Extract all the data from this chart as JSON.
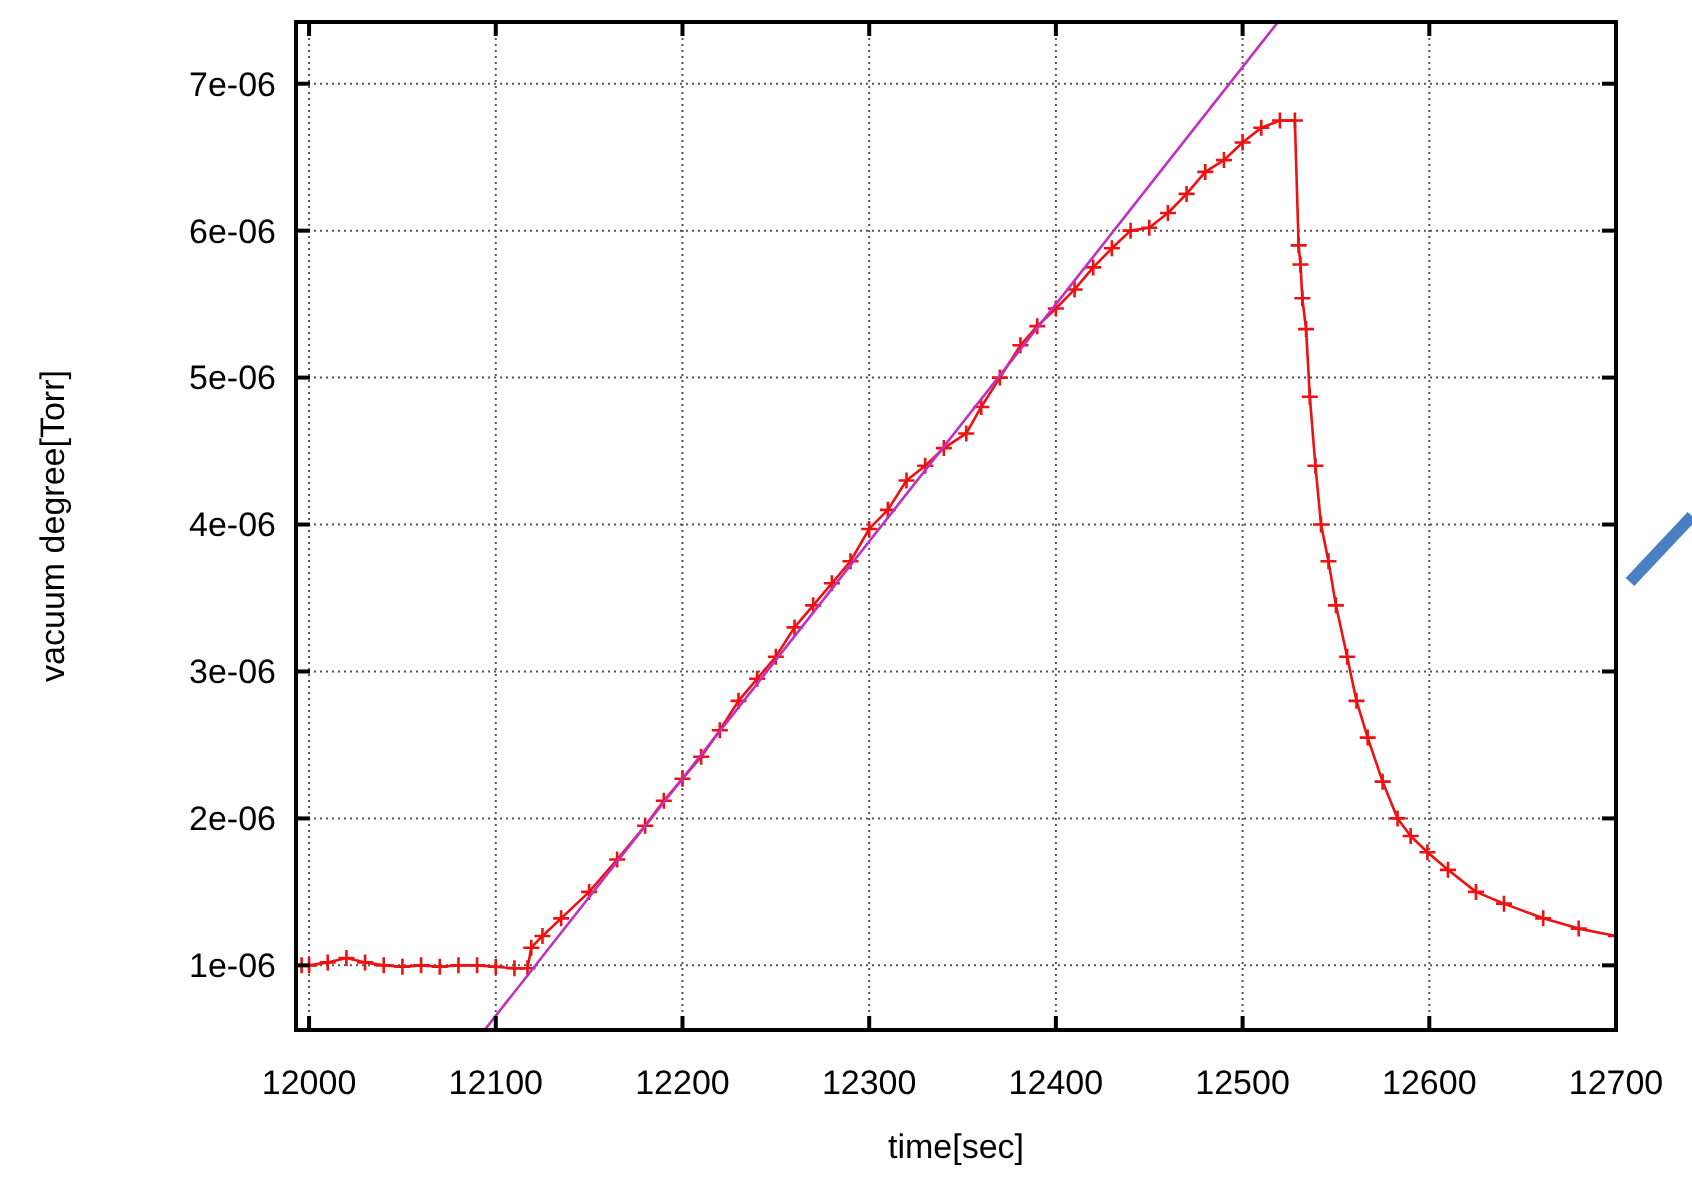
{
  "chart_data": {
    "type": "line",
    "xlabel": "time[sec]",
    "ylabel": "vacuum degree[Torr]",
    "xlim": [
      11993,
      12700
    ],
    "xticks": [
      12000,
      12100,
      12200,
      12300,
      12400,
      12500,
      12600,
      12700
    ],
    "ylim": [
      5.6e-07,
      7.42e-06
    ],
    "yticks": [
      {
        "value": 1e-06,
        "label": "1e-06"
      },
      {
        "value": 2e-06,
        "label": "2e-06"
      },
      {
        "value": 3e-06,
        "label": "3e-06"
      },
      {
        "value": 4e-06,
        "label": "4e-06"
      },
      {
        "value": 5e-06,
        "label": "5e-06"
      },
      {
        "value": 6e-06,
        "label": "6e-06"
      },
      {
        "value": 7e-06,
        "label": "7e-06"
      }
    ],
    "grid": true,
    "series": [
      {
        "color": "#ee1111",
        "marker": "cross",
        "x": [
          11996,
          12000,
          12010,
          12020,
          12030,
          12040,
          12050,
          12060,
          12070,
          12080,
          12090,
          12100,
          12110,
          12117,
          12119,
          12125,
          12135,
          12150,
          12165,
          12180,
          12190,
          12200,
          12210,
          12220,
          12230,
          12240,
          12250,
          12260,
          12270,
          12280,
          12290,
          12300,
          12310,
          12320,
          12330,
          12340,
          12352,
          12360,
          12370,
          12381,
          12390,
          12400,
          12410,
          12420,
          12430,
          12440,
          12450,
          12460,
          12470,
          12480,
          12490,
          12500,
          12510,
          12520,
          12528,
          12530,
          12531,
          12532,
          12534,
          12536,
          12539,
          12542,
          12546,
          12550,
          12556,
          12561,
          12567,
          12575,
          12583,
          12590,
          12599,
          12610,
          12625,
          12640,
          12661,
          12680,
          12700
        ],
        "values": [
          1e-06,
          1e-06,
          1.02e-06,
          1.05e-06,
          1.02e-06,
          1e-06,
          9.9e-07,
          1e-06,
          9.9e-07,
          1e-06,
          1e-06,
          9.9e-07,
          9.8e-07,
          9.8e-07,
          1.12e-06,
          1.2e-06,
          1.32e-06,
          1.5e-06,
          1.72e-06,
          1.95e-06,
          2.12e-06,
          2.27e-06,
          2.42e-06,
          2.6e-06,
          2.8e-06,
          2.95e-06,
          3.1e-06,
          3.3e-06,
          3.45e-06,
          3.6e-06,
          3.75e-06,
          3.97e-06,
          4.1e-06,
          4.3e-06,
          4.4e-06,
          4.52e-06,
          4.62e-06,
          4.8e-06,
          5e-06,
          5.22e-06,
          5.35e-06,
          5.47e-06,
          5.6e-06,
          5.75e-06,
          5.88e-06,
          6e-06,
          6.02e-06,
          6.12e-06,
          6.25e-06,
          6.4e-06,
          6.48e-06,
          6.6e-06,
          6.7e-06,
          6.75e-06,
          6.75e-06,
          5.9e-06,
          5.77e-06,
          5.54e-06,
          5.33e-06,
          4.87e-06,
          4.4e-06,
          4e-06,
          3.75e-06,
          3.45e-06,
          3.1e-06,
          2.8e-06,
          2.55e-06,
          2.25e-06,
          2e-06,
          1.88e-06,
          1.77e-06,
          1.65e-06,
          1.5e-06,
          1.42e-06,
          1.32e-06,
          1.25e-06,
          1.2e-06
        ]
      },
      {
        "type": "line",
        "color": "#c030c0",
        "marker": "none",
        "x": [
          12094,
          12519
        ],
        "values": [
          5.6e-07,
          7.42e-06
        ]
      }
    ]
  }
}
